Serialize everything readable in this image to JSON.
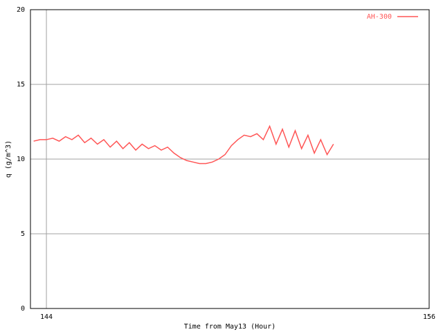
{
  "chart_data": {
    "type": "line",
    "xlabel": "Time from May13 (Hour)",
    "ylabel": "q (g/m^3)",
    "xlim": [
      143.5,
      156
    ],
    "xticks": [
      144,
      156
    ],
    "ylim": [
      0,
      20
    ],
    "yticks": [
      0,
      5,
      10,
      15,
      20
    ],
    "grid": true,
    "legend": "top-right",
    "x": [
      143.6,
      143.8,
      144.0,
      144.2,
      144.4,
      144.6,
      144.8,
      145.0,
      145.2,
      145.4,
      145.6,
      145.8,
      146.0,
      146.2,
      146.4,
      146.6,
      146.8,
      147.0,
      147.2,
      147.4,
      147.6,
      147.8,
      148.0,
      148.2,
      148.4,
      148.6,
      148.8,
      149.0,
      149.2,
      149.4,
      149.6,
      149.8,
      150.0,
      150.2,
      150.4,
      150.6,
      150.8,
      151.0,
      151.2,
      151.4,
      151.6,
      151.8,
      152.0,
      152.2,
      152.4,
      152.6,
      152.8,
      153.0
    ],
    "series": [
      {
        "name": "AH-300",
        "color": "#ff5555",
        "values": [
          11.2,
          11.3,
          11.3,
          11.4,
          11.2,
          11.5,
          11.3,
          11.6,
          11.1,
          11.4,
          11.0,
          11.3,
          10.8,
          11.2,
          10.7,
          11.1,
          10.6,
          11.0,
          10.7,
          10.9,
          10.6,
          10.8,
          10.4,
          10.1,
          9.9,
          9.8,
          9.7,
          9.7,
          9.8,
          10.0,
          10.3,
          10.9,
          11.3,
          11.6,
          11.5,
          11.7,
          11.3,
          12.2,
          11.0,
          12.0,
          10.8,
          11.9,
          10.7,
          11.6,
          10.4,
          11.3,
          10.3,
          11.0
        ]
      }
    ]
  }
}
